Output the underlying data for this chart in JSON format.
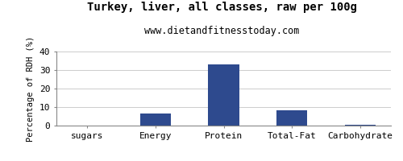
{
  "title": "Turkey, liver, all classes, raw per 100g",
  "subtitle": "www.dietandfitnesstoday.com",
  "categories": [
    "sugars",
    "Energy",
    "Protein",
    "Total-Fat",
    "Carbohydrate"
  ],
  "values": [
    0,
    6.5,
    33.0,
    8.2,
    0.5
  ],
  "bar_color": "#2e4a8e",
  "ylabel": "Percentage of RDH (%)",
  "ylim": [
    0,
    40
  ],
  "yticks": [
    0,
    10,
    20,
    30,
    40
  ],
  "background_color": "#ffffff",
  "plot_bg_color": "#ffffff",
  "title_fontsize": 10,
  "subtitle_fontsize": 8.5,
  "ylabel_fontsize": 7.5,
  "tick_fontsize": 8
}
